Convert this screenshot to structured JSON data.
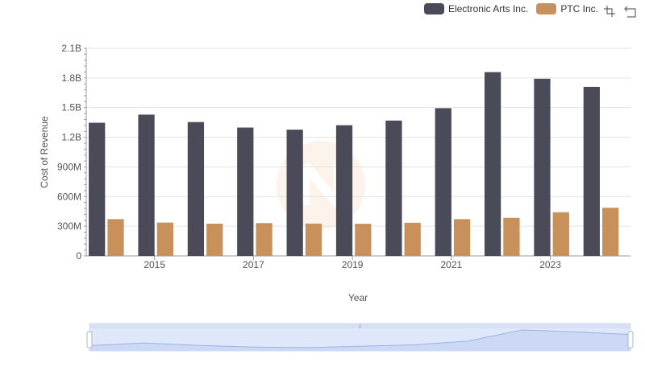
{
  "legend": {
    "items": [
      {
        "label": "Electronic Arts Inc.",
        "color": "#4a4a58"
      },
      {
        "label": "PTC Inc.",
        "color": "#c8915c"
      }
    ]
  },
  "toolbox": {
    "zoom_icon": "zoom-icon",
    "restore_icon": "restore-icon"
  },
  "chart_data": {
    "type": "bar",
    "categories": [
      "2014",
      "2015",
      "2016",
      "2017",
      "2018",
      "2019",
      "2020",
      "2021",
      "2022",
      "2023",
      "2024"
    ],
    "x_tick_labels": [
      "2015",
      "2017",
      "2019",
      "2021",
      "2023"
    ],
    "series": [
      {
        "name": "Electronic Arts Inc.",
        "color": "#4a4a58",
        "values": [
          1347000000,
          1429000000,
          1354000000,
          1298000000,
          1277000000,
          1322000000,
          1369000000,
          1494000000,
          1859000000,
          1792000000,
          1710000000
        ]
      },
      {
        "name": "PTC Inc.",
        "color": "#c8915c",
        "values": [
          372000000,
          337000000,
          326000000,
          332000000,
          327000000,
          325000000,
          335000000,
          372000000,
          385000000,
          442000000,
          487000000
        ]
      }
    ],
    "xlabel": "Year",
    "ylabel": "Cost of Revenue",
    "ylim": [
      0,
      2100000000
    ],
    "y_ticks": [
      0,
      300000000,
      600000000,
      900000000,
      1200000000,
      1500000000,
      1800000000,
      2100000000
    ],
    "y_tick_labels": [
      "0",
      "300M",
      "600M",
      "900M",
      "1.2B",
      "1.5B",
      "1.8B",
      "2.1B"
    ],
    "grid": true,
    "legend_position": "top-right",
    "data_zoom": {
      "range": [
        0,
        100
      ],
      "handle_label": "|||"
    }
  }
}
